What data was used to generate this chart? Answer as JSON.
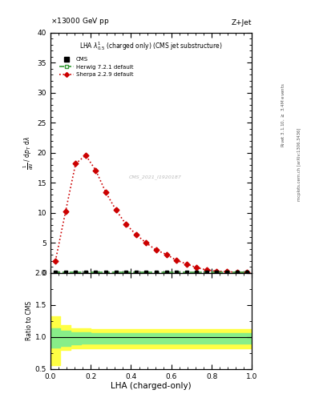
{
  "title_left": "13000 GeV pp",
  "title_right": "Z+Jet",
  "plot_label": "LHA $\\lambda^{1}_{0.5}$ (charged only) (CMS jet substructure)",
  "watermark": "CMS_2021_I1920187",
  "ylabel_main": "1 / mathrm d N   mathrm d p_T mathrm d lambda",
  "ylabel_ratio": "Ratio to CMS",
  "xlabel": "LHA (charged-only)",
  "right_label_top": "Rivet 3.1.10, ≥ 3.4M events",
  "right_label_bottom": "mcplots.cern.ch [arXiv:1306.3436]",
  "cms_x": [
    0.025,
    0.075,
    0.125,
    0.175,
    0.225,
    0.275,
    0.325,
    0.375,
    0.425,
    0.475,
    0.525,
    0.575,
    0.625,
    0.675,
    0.725,
    0.775,
    0.825,
    0.875,
    0.925,
    0.975
  ],
  "cms_y": [
    0.1,
    0.1,
    0.1,
    0.1,
    0.1,
    0.1,
    0.1,
    0.1,
    0.1,
    0.1,
    0.1,
    0.1,
    0.1,
    0.1,
    0.1,
    0.1,
    0.1,
    0.1,
    0.1,
    0.1
  ],
  "sherpa_x": [
    0.025,
    0.075,
    0.125,
    0.175,
    0.225,
    0.275,
    0.325,
    0.375,
    0.425,
    0.475,
    0.525,
    0.575,
    0.625,
    0.675,
    0.725,
    0.775,
    0.825,
    0.875,
    0.925,
    0.975
  ],
  "sherpa_y": [
    2.0,
    10.2,
    18.2,
    19.6,
    17.1,
    13.4,
    10.5,
    8.1,
    6.4,
    5.0,
    3.8,
    3.1,
    2.1,
    1.5,
    0.9,
    0.5,
    0.3,
    0.2,
    0.12,
    0.08
  ],
  "herwig_x": [
    0.025,
    0.075,
    0.125,
    0.175,
    0.225,
    0.275,
    0.325,
    0.375,
    0.425,
    0.475,
    0.525,
    0.575,
    0.625,
    0.675,
    0.725,
    0.775,
    0.825,
    0.875,
    0.925,
    0.975
  ],
  "herwig_y": [
    0.1,
    0.1,
    0.1,
    0.1,
    0.1,
    0.1,
    0.1,
    0.1,
    0.1,
    0.1,
    0.1,
    0.1,
    0.1,
    0.1,
    0.1,
    0.1,
    0.1,
    0.1,
    0.1,
    0.1
  ],
  "ratio_x_edges": [
    0.0,
    0.05,
    0.1,
    0.15,
    0.2,
    0.25,
    0.3,
    0.35,
    0.4,
    0.45,
    0.5,
    0.55,
    0.6,
    0.65,
    0.7,
    0.75,
    0.8,
    0.85,
    0.9,
    0.95,
    1.0
  ],
  "ratio_yellow_upper": [
    1.32,
    1.18,
    1.14,
    1.14,
    1.12,
    1.12,
    1.12,
    1.12,
    1.12,
    1.12,
    1.12,
    1.12,
    1.12,
    1.12,
    1.12,
    1.12,
    1.12,
    1.12,
    1.12,
    1.12
  ],
  "ratio_yellow_lower": [
    0.56,
    0.8,
    0.82,
    0.82,
    0.82,
    0.82,
    0.82,
    0.82,
    0.82,
    0.82,
    0.82,
    0.82,
    0.82,
    0.82,
    0.82,
    0.82,
    0.82,
    0.82,
    0.82,
    0.82
  ],
  "ratio_green_upper": [
    1.14,
    1.1,
    1.07,
    1.07,
    1.06,
    1.06,
    1.06,
    1.06,
    1.06,
    1.06,
    1.06,
    1.06,
    1.06,
    1.06,
    1.06,
    1.06,
    1.06,
    1.06,
    1.06,
    1.06
  ],
  "ratio_green_lower": [
    0.84,
    0.86,
    0.88,
    0.9,
    0.9,
    0.9,
    0.9,
    0.9,
    0.9,
    0.9,
    0.9,
    0.9,
    0.9,
    0.9,
    0.9,
    0.9,
    0.9,
    0.9,
    0.9,
    0.9
  ],
  "ylim_main": [
    0,
    40
  ],
  "ylim_ratio": [
    0.5,
    2.0
  ],
  "xlim": [
    0.0,
    1.0
  ],
  "cms_color": "#000000",
  "herwig_color": "#339933",
  "sherpa_color": "#cc0000",
  "yellow_color": "#ffff44",
  "green_color": "#88ee88",
  "background_color": "#ffffff"
}
